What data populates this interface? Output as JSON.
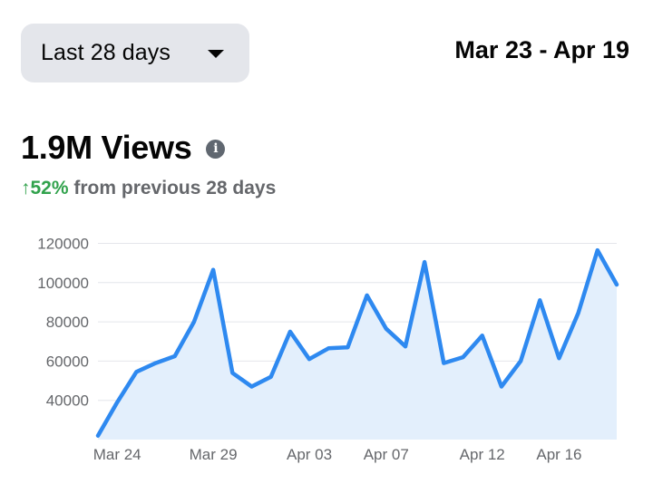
{
  "filter": {
    "selected": "Last 28 days",
    "dropdown_icon": "caret-down-icon"
  },
  "date_range": "Mar 23 - Apr 19",
  "summary": {
    "value": "1.9M Views",
    "info_icon": "info-icon",
    "change_arrow": "↑",
    "change_percent": "52%",
    "change_text": "from previous 28 days"
  },
  "colors": {
    "line": "#2e89f0",
    "fill": "#e3effc",
    "grid": "#e4e6eb",
    "positive": "#31a24c"
  },
  "chart_data": {
    "type": "area",
    "x": [
      "Mar 23",
      "Mar 24",
      "Mar 25",
      "Mar 26",
      "Mar 27",
      "Mar 28",
      "Mar 29",
      "Mar 30",
      "Mar 31",
      "Apr 01",
      "Apr 02",
      "Apr 03",
      "Apr 04",
      "Apr 05",
      "Apr 06",
      "Apr 07",
      "Apr 08",
      "Apr 09",
      "Apr 10",
      "Apr 11",
      "Apr 12",
      "Apr 13",
      "Apr 14",
      "Apr 15",
      "Apr 16",
      "Apr 17",
      "Apr 18",
      "Apr 19"
    ],
    "values": [
      22000,
      39000,
      54500,
      59000,
      62500,
      80000,
      106500,
      54000,
      47000,
      52000,
      75000,
      61000,
      66500,
      67000,
      93500,
      76500,
      67500,
      110500,
      59000,
      62000,
      73000,
      47000,
      60000,
      91000,
      61500,
      84500,
      116500,
      99000
    ],
    "x_tick_labels": [
      "Mar 24",
      "Mar 29",
      "Apr 03",
      "Apr 07",
      "Apr 12",
      "Apr 16"
    ],
    "x_tick_index": [
      1,
      6,
      11,
      15,
      20,
      24
    ],
    "y_ticks": [
      40000,
      60000,
      80000,
      100000,
      120000
    ],
    "ylim": [
      20000,
      120000
    ],
    "grid": true,
    "legend": "none"
  }
}
